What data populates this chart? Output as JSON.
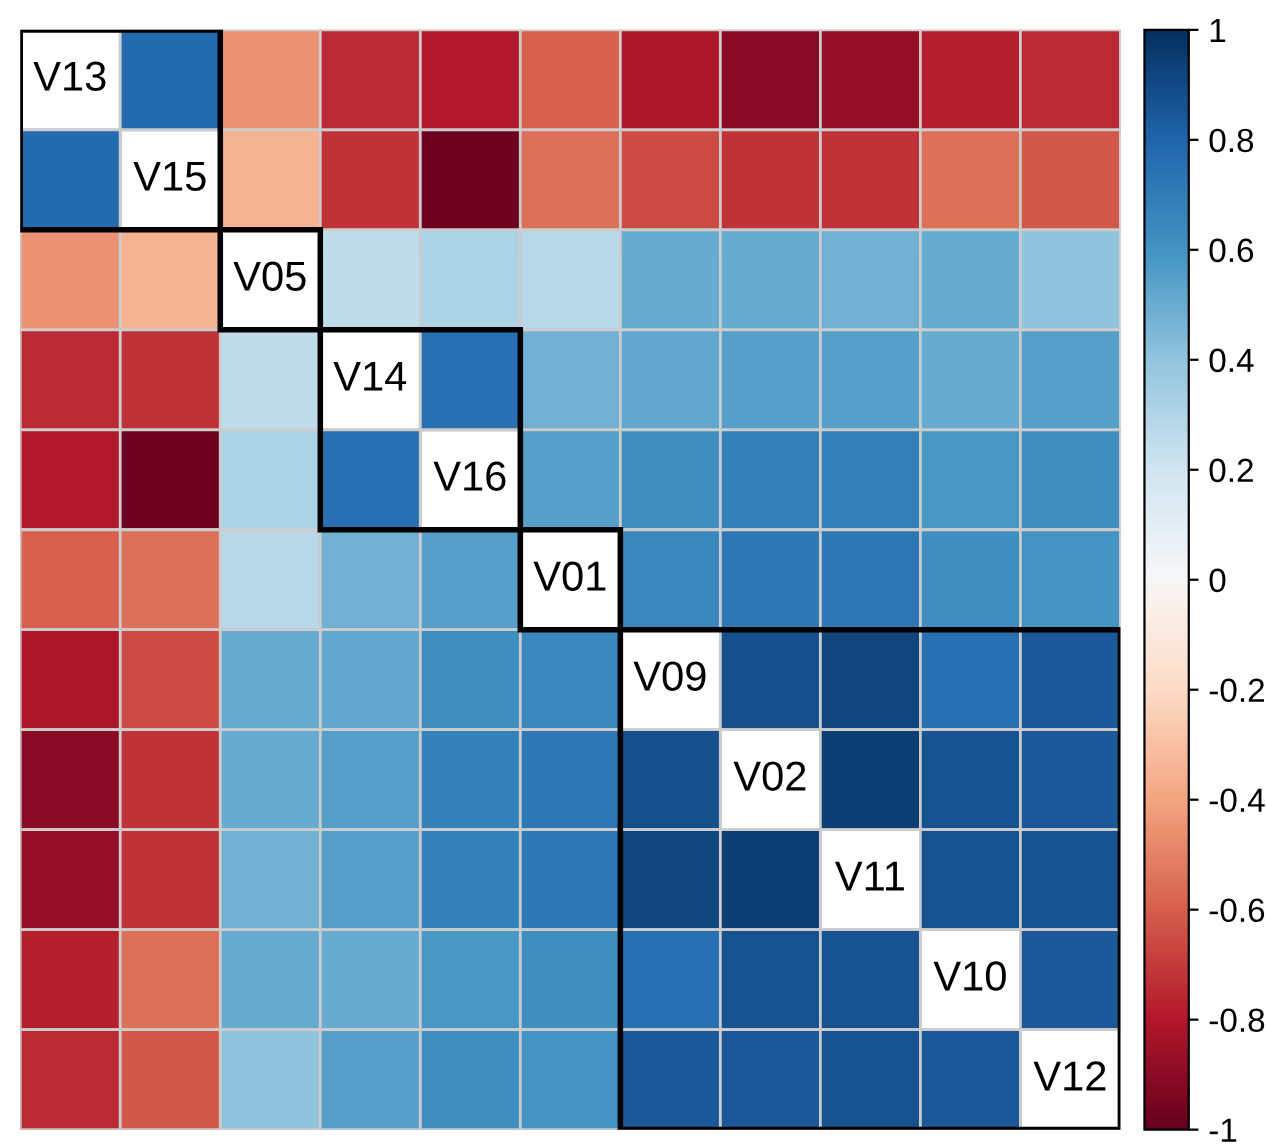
{
  "chart_data": {
    "type": "heatmap",
    "categories": [
      null,
      null,
      null,
      null,
      null,
      null,
      null,
      null,
      null,
      null,
      null
    ],
    "y_categories": [
      null,
      null,
      null,
      null,
      null,
      null,
      null,
      null,
      null,
      null,
      null
    ],
    "cells": [
      [
        null,
        0.78,
        -0.45,
        -0.75,
        -0.8,
        -0.6,
        -0.82,
        -0.9,
        -0.88,
        -0.78,
        -0.75
      ],
      [
        0.78,
        null,
        -0.35,
        -0.72,
        -0.98,
        -0.55,
        -0.65,
        -0.72,
        -0.72,
        -0.55,
        -0.62
      ],
      [
        -0.45,
        -0.35,
        null,
        0.25,
        0.32,
        0.28,
        0.5,
        0.5,
        0.48,
        0.5,
        0.4
      ],
      [
        -0.75,
        -0.72,
        0.25,
        null,
        0.75,
        0.48,
        0.52,
        0.55,
        0.55,
        0.5,
        0.55
      ],
      [
        -0.8,
        -0.98,
        0.32,
        0.75,
        null,
        0.55,
        0.62,
        0.68,
        0.68,
        0.58,
        0.62
      ],
      [
        -0.6,
        -0.55,
        0.28,
        0.48,
        0.55,
        null,
        0.65,
        0.72,
        0.72,
        0.62,
        0.6
      ],
      [
        -0.82,
        -0.65,
        0.5,
        0.52,
        0.62,
        0.65,
        null,
        0.88,
        0.92,
        0.75,
        0.85
      ],
      [
        -0.9,
        -0.72,
        0.5,
        0.55,
        0.68,
        0.72,
        0.88,
        null,
        0.95,
        0.87,
        0.85
      ],
      [
        -0.88,
        -0.72,
        0.48,
        0.55,
        0.68,
        0.72,
        0.92,
        0.95,
        null,
        0.87,
        0.87
      ],
      [
        -0.78,
        -0.55,
        0.5,
        0.5,
        0.58,
        0.62,
        0.75,
        0.87,
        0.87,
        null,
        0.85
      ],
      [
        -0.75,
        -0.62,
        0.4,
        0.55,
        0.62,
        0.6,
        0.85,
        0.85,
        0.87,
        0.85,
        null
      ]
    ],
    "cell_labels": [
      [
        "V13",
        null,
        null,
        null,
        null,
        null,
        null,
        null,
        null,
        null,
        null
      ],
      [
        null,
        "V15",
        null,
        null,
        null,
        null,
        null,
        null,
        null,
        null,
        null
      ],
      [
        null,
        null,
        "V05",
        null,
        null,
        null,
        null,
        null,
        null,
        null,
        null
      ],
      [
        null,
        null,
        null,
        "V14",
        null,
        null,
        null,
        null,
        null,
        null,
        null
      ],
      [
        null,
        null,
        null,
        null,
        "V16",
        null,
        null,
        null,
        null,
        null,
        null
      ],
      [
        null,
        null,
        null,
        null,
        null,
        "V01",
        null,
        null,
        null,
        null,
        null
      ],
      [
        null,
        null,
        null,
        null,
        null,
        null,
        "V09",
        null,
        null,
        null,
        null
      ],
      [
        null,
        null,
        null,
        null,
        null,
        null,
        null,
        "V02",
        null,
        null,
        null
      ],
      [
        null,
        null,
        null,
        null,
        null,
        null,
        null,
        null,
        "V11",
        null,
        null
      ],
      [
        null,
        null,
        null,
        null,
        null,
        null,
        null,
        null,
        null,
        "V10",
        null
      ],
      [
        null,
        null,
        null,
        null,
        null,
        null,
        null,
        null,
        null,
        null,
        "V12"
      ]
    ],
    "clim": [
      -1,
      1
    ],
    "cticks": [
      -1,
      -0.8,
      -0.6,
      -0.4,
      -0.2,
      0,
      0.2,
      0.4,
      0.6,
      0.8,
      1
    ],
    "tick_labels": false
  }
}
